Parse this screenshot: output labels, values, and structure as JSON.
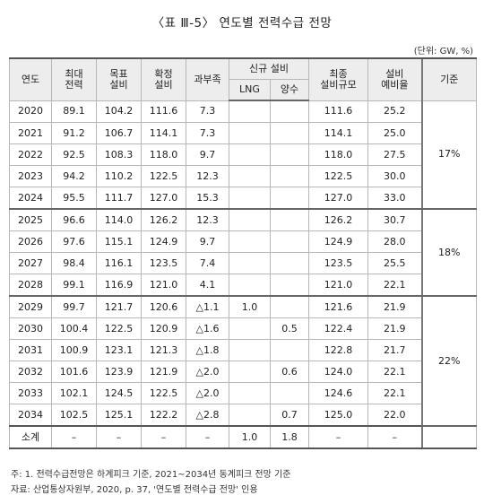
{
  "title": "〈표 Ⅲ-5〉 연도별 전력수급 전망",
  "unit": "(단위: GW, %)",
  "headers": {
    "year": "연도",
    "peak_line1": "최대",
    "peak_line2": "전력",
    "target_line1": "목표",
    "target_line2": "설비",
    "confirmed_line1": "확정",
    "confirmed_line2": "설비",
    "surplus": "과부족",
    "new_group": "신규 설비",
    "lng": "LNG",
    "pumped": "양수",
    "final_line1": "최종",
    "final_line2": "설비규모",
    "reserve_line1": "설비",
    "reserve_line2": "예비율",
    "standard": "기준"
  },
  "rows": [
    {
      "year": "2020",
      "peak": "89.1",
      "target": "104.2",
      "confirmed": "111.6",
      "surplus": "7.3",
      "lng": "",
      "pumped": "",
      "final": "111.6",
      "reserve": "25.2"
    },
    {
      "year": "2021",
      "peak": "91.2",
      "target": "106.7",
      "confirmed": "114.1",
      "surplus": "7.3",
      "lng": "",
      "pumped": "",
      "final": "114.1",
      "reserve": "25.0"
    },
    {
      "year": "2022",
      "peak": "92.5",
      "target": "108.3",
      "confirmed": "118.0",
      "surplus": "9.7",
      "lng": "",
      "pumped": "",
      "final": "118.0",
      "reserve": "27.5"
    },
    {
      "year": "2023",
      "peak": "94.2",
      "target": "110.2",
      "confirmed": "122.5",
      "surplus": "12.3",
      "lng": "",
      "pumped": "",
      "final": "122.5",
      "reserve": "30.0"
    },
    {
      "year": "2024",
      "peak": "95.5",
      "target": "111.7",
      "confirmed": "127.0",
      "surplus": "15.3",
      "lng": "",
      "pumped": "",
      "final": "127.0",
      "reserve": "33.0"
    },
    {
      "year": "2025",
      "peak": "96.6",
      "target": "114.0",
      "confirmed": "126.2",
      "surplus": "12.3",
      "lng": "",
      "pumped": "",
      "final": "126.2",
      "reserve": "30.7"
    },
    {
      "year": "2026",
      "peak": "97.6",
      "target": "115.1",
      "confirmed": "124.9",
      "surplus": "9.7",
      "lng": "",
      "pumped": "",
      "final": "124.9",
      "reserve": "28.0"
    },
    {
      "year": "2027",
      "peak": "98.4",
      "target": "116.1",
      "confirmed": "123.5",
      "surplus": "7.4",
      "lng": "",
      "pumped": "",
      "final": "123.5",
      "reserve": "25.5"
    },
    {
      "year": "2028",
      "peak": "99.1",
      "target": "116.9",
      "confirmed": "121.0",
      "surplus": "4.1",
      "lng": "",
      "pumped": "",
      "final": "121.0",
      "reserve": "22.1"
    },
    {
      "year": "2029",
      "peak": "99.7",
      "target": "121.7",
      "confirmed": "120.6",
      "surplus": "△1.1",
      "lng": "1.0",
      "pumped": "",
      "final": "121.6",
      "reserve": "21.9"
    },
    {
      "year": "2030",
      "peak": "100.4",
      "target": "122.5",
      "confirmed": "120.9",
      "surplus": "△1.6",
      "lng": "",
      "pumped": "0.5",
      "final": "122.4",
      "reserve": "21.9"
    },
    {
      "year": "2031",
      "peak": "100.9",
      "target": "123.1",
      "confirmed": "121.3",
      "surplus": "△1.8",
      "lng": "",
      "pumped": "",
      "final": "122.8",
      "reserve": "21.7"
    },
    {
      "year": "2032",
      "peak": "101.6",
      "target": "123.9",
      "confirmed": "121.9",
      "surplus": "△2.0",
      "lng": "",
      "pumped": "0.6",
      "final": "124.0",
      "reserve": "22.1"
    },
    {
      "year": "2033",
      "peak": "102.1",
      "target": "124.5",
      "confirmed": "122.5",
      "surplus": "△2.0",
      "lng": "",
      "pumped": "",
      "final": "124.6",
      "reserve": "22.1"
    },
    {
      "year": "2034",
      "peak": "102.5",
      "target": "125.1",
      "confirmed": "122.2",
      "surplus": "△2.8",
      "lng": "",
      "pumped": "0.7",
      "final": "125.0",
      "reserve": "22.0"
    }
  ],
  "standards": [
    "17%",
    "18%",
    "22%"
  ],
  "total": {
    "label": "소계",
    "peak": "–",
    "target": "–",
    "confirmed": "–",
    "surplus": "–",
    "lng": "1.0",
    "pumped": "1.8",
    "final": "–",
    "reserve": "–"
  },
  "notes": {
    "note1": "주: 1. 전력수급전망은 하계피크 기준, 2021~2034년 동계피크 전망 기준",
    "source": "자료: 산업통상자원부, 2020, p. 37, '연도별 전력수급 전망' 인용"
  }
}
